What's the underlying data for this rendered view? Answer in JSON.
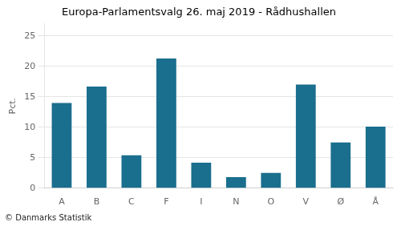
{
  "chart_data": {
    "type": "bar",
    "title": "Europa-Parlamentsvalg 26. maj 2019 - Rådhushallen",
    "ylabel": "Pct.",
    "footnote": "© Danmarks Statistik",
    "categories": [
      "A",
      "B",
      "C",
      "F",
      "I",
      "N",
      "O",
      "V",
      "Ø",
      "Å"
    ],
    "values": [
      14.0,
      16.7,
      5.4,
      21.3,
      4.2,
      1.8,
      2.5,
      17.0,
      7.5,
      10.1
    ],
    "color": "#1a6e8e",
    "ylim": [
      0,
      27
    ],
    "yticks": [
      0,
      5,
      10,
      15,
      20,
      25
    ],
    "grid": true
  }
}
